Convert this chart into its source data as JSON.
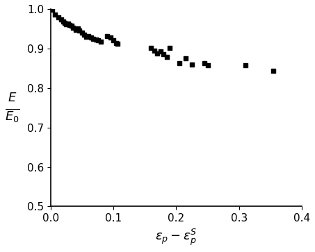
{
  "x": [
    0.003,
    0.007,
    0.012,
    0.017,
    0.02,
    0.023,
    0.025,
    0.028,
    0.03,
    0.033,
    0.036,
    0.04,
    0.043,
    0.046,
    0.05,
    0.054,
    0.057,
    0.06,
    0.065,
    0.068,
    0.072,
    0.076,
    0.08,
    0.09,
    0.095,
    0.1,
    0.104,
    0.107,
    0.16,
    0.165,
    0.17,
    0.175,
    0.18,
    0.185,
    0.19,
    0.205,
    0.215,
    0.225,
    0.245,
    0.25,
    0.31,
    0.355
  ],
  "y": [
    0.998,
    0.985,
    0.978,
    0.973,
    0.968,
    0.965,
    0.962,
    0.963,
    0.96,
    0.957,
    0.952,
    0.948,
    0.95,
    0.945,
    0.94,
    0.935,
    0.93,
    0.932,
    0.928,
    0.925,
    0.922,
    0.92,
    0.918,
    0.932,
    0.928,
    0.92,
    0.913,
    0.912,
    0.902,
    0.895,
    0.888,
    0.892,
    0.885,
    0.878,
    0.902,
    0.862,
    0.875,
    0.86,
    0.863,
    0.858,
    0.858,
    0.843
  ],
  "xlim": [
    0.0,
    0.4
  ],
  "ylim": [
    0.5,
    1.0
  ],
  "xticks": [
    0.0,
    0.1,
    0.2,
    0.3,
    0.4
  ],
  "yticks": [
    0.5,
    0.6,
    0.7,
    0.8,
    0.9,
    1.0
  ],
  "xlabel": "$\\varepsilon_p - \\varepsilon_p^S$",
  "ylabel_line1": "$E$",
  "ylabel_line2": "$E_0$",
  "marker_color": "black",
  "marker_size": 5,
  "bg_color": "white",
  "tick_fontsize": 11,
  "label_fontsize": 13
}
